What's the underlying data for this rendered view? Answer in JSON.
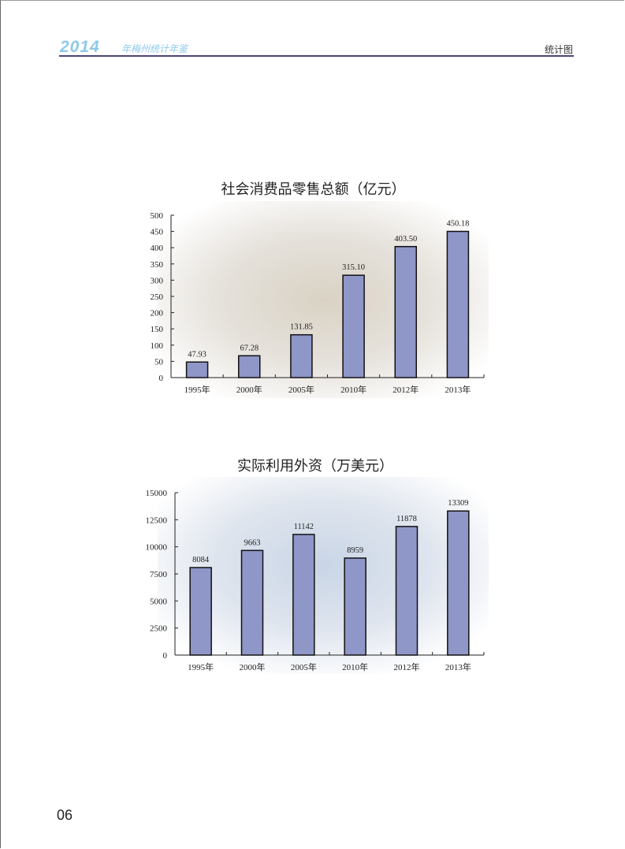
{
  "header": {
    "year": "2014",
    "subtitle": "年梅州统计年鉴",
    "section": "统计图"
  },
  "page_number": "06",
  "chart_data": [
    {
      "type": "bar",
      "title": "社会消费品零售总额（亿元）",
      "categories": [
        "1995年",
        "2000年",
        "2005年",
        "2010年",
        "2012年",
        "2013年"
      ],
      "values": [
        47.93,
        67.28,
        131.85,
        315.1,
        403.5,
        450.18
      ],
      "value_labels": [
        "47.93",
        "67.28",
        "131.85",
        "315.10",
        "403.50",
        "450.18"
      ],
      "yticks": [
        "0",
        "50",
        "100",
        "150",
        "200",
        "250",
        "300",
        "350",
        "400",
        "450",
        "500"
      ],
      "ylim": [
        0,
        500
      ],
      "xlabel": "",
      "ylabel": "",
      "bar_color": "#8f96c8",
      "grid": false
    },
    {
      "type": "bar",
      "title": "实际利用外资（万美元）",
      "categories": [
        "1995年",
        "2000年",
        "2005年",
        "2010年",
        "2012年",
        "2013年"
      ],
      "values": [
        8084,
        9663,
        11142,
        8959,
        11878,
        13309
      ],
      "value_labels": [
        "8084",
        "9663",
        "11142",
        "8959",
        "11878",
        "13309"
      ],
      "yticks": [
        "0",
        "2500",
        "5000",
        "7500",
        "10000",
        "12500",
        "15000"
      ],
      "ylim": [
        0,
        15000
      ],
      "xlabel": "",
      "ylabel": "",
      "bar_color": "#8f96c8",
      "grid": false
    }
  ]
}
